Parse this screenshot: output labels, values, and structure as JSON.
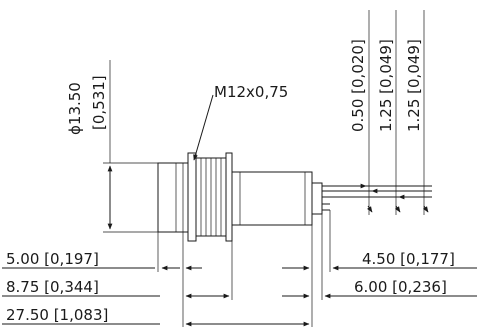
{
  "diameter": {
    "symbol": "ϕ",
    "mm": "13.50",
    "inch": "[0,531]"
  },
  "thread_label": "M12x0,75",
  "pin_dims": [
    "0.50 [0,020]",
    "1.25 [0,049]",
    "1.25 [0,049]"
  ],
  "left_dims": [
    "5.00 [0,197]",
    "8.75 [0,344]",
    "27.50 [1,083]"
  ],
  "right_dims": [
    "4.50 [0,177]",
    "6.00 [0,236]"
  ]
}
